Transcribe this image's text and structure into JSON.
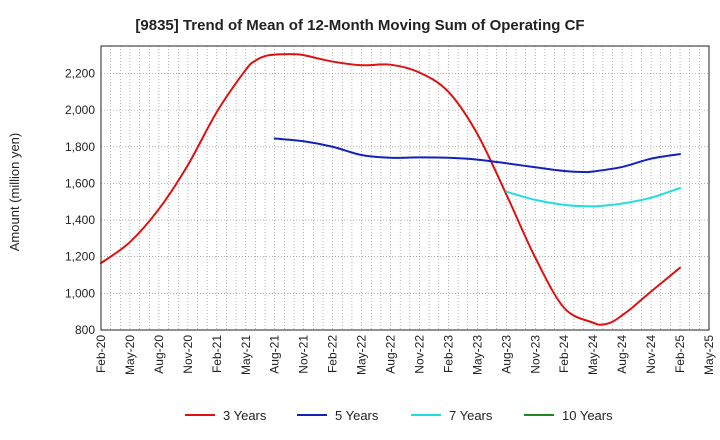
{
  "chart_data": {
    "type": "line",
    "title": "[9835]  Trend of Mean of 12-Month Moving Sum of Operating CF",
    "xlabel": "",
    "ylabel": "Amount (million yen)",
    "ylim": [
      800,
      2350
    ],
    "yticks": [
      800,
      1000,
      1200,
      1400,
      1600,
      1800,
      2000,
      2200
    ],
    "ytick_labels": [
      "800",
      "1,000",
      "1,200",
      "1,400",
      "1,600",
      "1,800",
      "2,000",
      "2,200"
    ],
    "x_start": "Feb-20",
    "x_months_total": 63,
    "xtick_labels": [
      "Feb-20",
      "May-20",
      "Aug-20",
      "Nov-20",
      "Feb-21",
      "May-21",
      "Aug-21",
      "Nov-21",
      "Feb-22",
      "May-22",
      "Aug-22",
      "Nov-22",
      "Feb-23",
      "May-23",
      "Aug-23",
      "Nov-23",
      "Feb-24",
      "May-24",
      "Aug-24",
      "Nov-24",
      "Feb-25",
      "May-25"
    ],
    "grid": true,
    "legend_position": "bottom",
    "series": [
      {
        "name": "3 Years",
        "color": "#dd1111",
        "x": [
          0,
          3,
          6,
          9,
          12,
          15,
          16,
          17,
          18,
          19,
          20,
          21,
          24,
          27,
          30,
          33,
          36,
          39,
          42,
          45,
          48,
          51,
          52,
          53,
          54,
          55,
          57,
          60
        ],
        "values": [
          1165,
          1280,
          1460,
          1700,
          1990,
          2220,
          2270,
          2295,
          2303,
          2305,
          2305,
          2300,
          2265,
          2245,
          2248,
          2205,
          2100,
          1870,
          1540,
          1195,
          920,
          840,
          830,
          845,
          880,
          920,
          1010,
          1140
        ]
      },
      {
        "name": "5 Years",
        "color": "#1122bb",
        "x": [
          18,
          21,
          24,
          27,
          30,
          33,
          36,
          39,
          42,
          45,
          48,
          50,
          51,
          54,
          57,
          60
        ],
        "values": [
          1845,
          1830,
          1800,
          1755,
          1740,
          1742,
          1740,
          1730,
          1710,
          1688,
          1668,
          1662,
          1665,
          1690,
          1735,
          1760
        ]
      },
      {
        "name": "7 Years",
        "color": "#22dddd",
        "x": [
          42,
          45,
          48,
          50,
          51,
          52,
          54,
          57,
          60
        ],
        "values": [
          1555,
          1510,
          1483,
          1476,
          1475,
          1478,
          1490,
          1522,
          1575
        ]
      },
      {
        "name": "10 Years",
        "color": "#228822",
        "x": [],
        "values": []
      }
    ]
  }
}
